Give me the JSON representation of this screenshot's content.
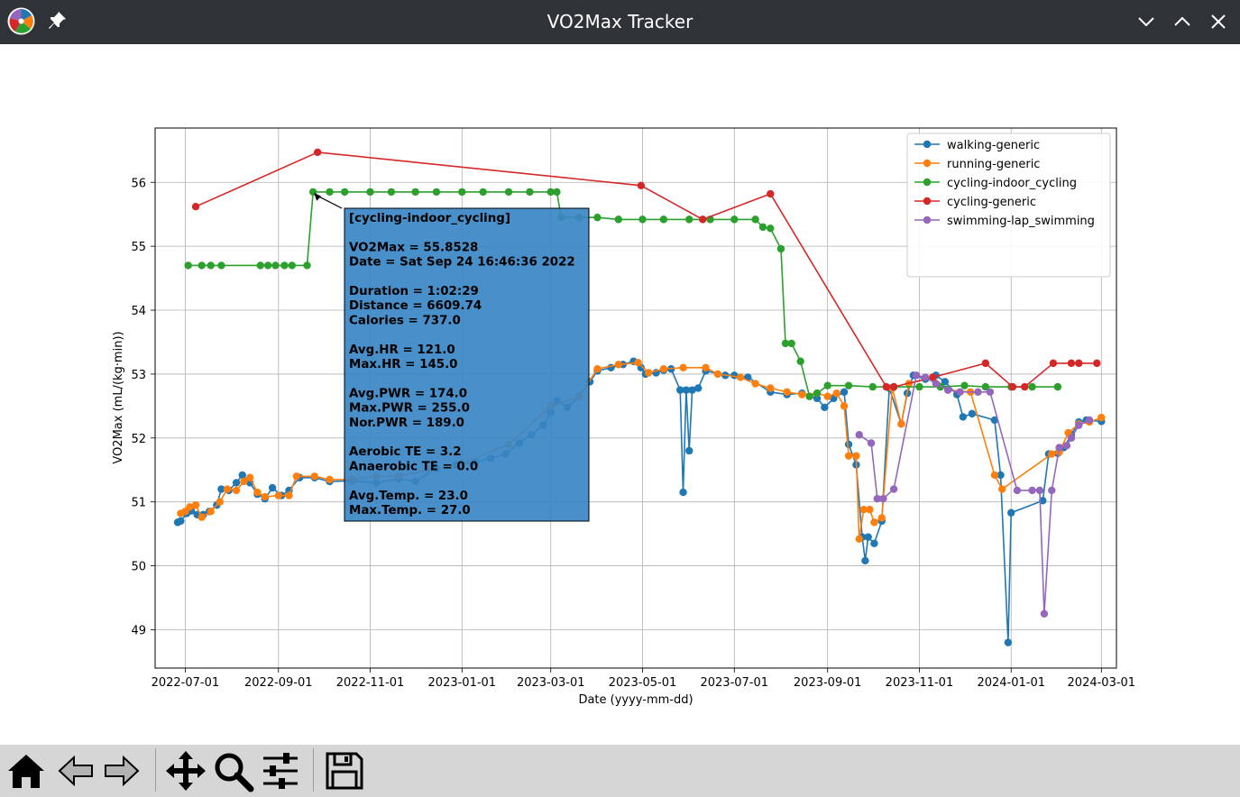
{
  "window": {
    "title": "VO2Max Tracker"
  },
  "icons": {
    "app": "app-logo-icon",
    "pin": "pin-icon",
    "minimize": "chevron-down-icon",
    "maximize": "chevron-up-icon",
    "close": "close-icon"
  },
  "toolbar": {
    "tools": [
      "home-icon",
      "back-arrow-icon",
      "forward-arrow-icon",
      "pan-icon",
      "zoom-icon",
      "configure-subplots-icon",
      "save-icon"
    ]
  },
  "chart_data": {
    "type": "line",
    "xlabel": "Date (yyyy-mm-dd)",
    "ylabel": "VO2Max (mL/(kg·min))",
    "xlim": [
      "2022-06-11",
      "2024-03-11"
    ],
    "ylim": [
      48.4,
      56.85
    ],
    "x_ticks": [
      "2022-07-01",
      "2022-09-01",
      "2022-11-01",
      "2023-01-01",
      "2023-03-01",
      "2023-05-01",
      "2023-07-01",
      "2023-09-01",
      "2023-11-01",
      "2024-01-01",
      "2024-03-01"
    ],
    "y_ticks": [
      49,
      50,
      51,
      52,
      53,
      54,
      55,
      56
    ],
    "grid": true,
    "legend_position": "top-right",
    "series": [
      {
        "name": "walking-generic",
        "color": "#1f77b4",
        "points": [
          [
            "2022-06-26",
            50.68
          ],
          [
            "2022-06-28",
            50.7
          ],
          [
            "2022-07-02",
            50.82
          ],
          [
            "2022-07-05",
            50.86
          ],
          [
            "2022-07-09",
            50.8
          ],
          [
            "2022-07-13",
            50.8
          ],
          [
            "2022-07-17",
            50.85
          ],
          [
            "2022-07-22",
            50.95
          ],
          [
            "2022-07-25",
            51.2
          ],
          [
            "2022-07-30",
            51.18
          ],
          [
            "2022-08-04",
            51.3
          ],
          [
            "2022-08-08",
            51.42
          ],
          [
            "2022-08-13",
            51.3
          ],
          [
            "2022-08-18",
            51.12
          ],
          [
            "2022-08-23",
            51.05
          ],
          [
            "2022-08-28",
            51.22
          ],
          [
            "2022-09-03",
            51.1
          ],
          [
            "2022-09-08",
            51.18
          ],
          [
            "2022-09-15",
            51.38
          ],
          [
            "2022-09-25",
            51.38
          ],
          [
            "2022-10-05",
            51.32
          ],
          [
            "2022-10-20",
            51.33
          ],
          [
            "2022-11-05",
            51.3
          ],
          [
            "2022-11-20",
            51.36
          ],
          [
            "2022-12-01",
            51.32
          ],
          [
            "2022-12-15",
            51.52
          ],
          [
            "2022-12-28",
            51.58
          ],
          [
            "2023-01-10",
            51.62
          ],
          [
            "2023-01-20",
            51.68
          ],
          [
            "2023-01-30",
            51.75
          ],
          [
            "2023-02-08",
            51.92
          ],
          [
            "2023-02-16",
            52.05
          ],
          [
            "2023-02-24",
            52.2
          ],
          [
            "2023-03-01",
            52.4
          ],
          [
            "2023-03-05",
            52.58
          ],
          [
            "2023-03-12",
            52.48
          ],
          [
            "2023-03-20",
            52.65
          ],
          [
            "2023-03-27",
            52.88
          ],
          [
            "2023-04-01",
            53.05
          ],
          [
            "2023-04-10",
            53.1
          ],
          [
            "2023-04-18",
            53.15
          ],
          [
            "2023-04-25",
            53.2
          ],
          [
            "2023-04-30",
            53.1
          ],
          [
            "2023-05-03",
            53.0
          ],
          [
            "2023-05-10",
            53.02
          ],
          [
            "2023-05-15",
            53.06
          ],
          [
            "2023-05-20",
            53.08
          ],
          [
            "2023-05-26",
            52.75
          ],
          [
            "2023-05-28",
            51.15
          ],
          [
            "2023-05-30",
            52.75
          ],
          [
            "2023-06-01",
            51.8
          ],
          [
            "2023-06-03",
            52.75
          ],
          [
            "2023-06-07",
            52.78
          ],
          [
            "2023-06-12",
            53.05
          ],
          [
            "2023-06-25",
            52.98
          ],
          [
            "2023-07-01",
            52.98
          ],
          [
            "2023-07-10",
            52.95
          ],
          [
            "2023-07-25",
            52.72
          ],
          [
            "2023-08-05",
            52.68
          ],
          [
            "2023-08-15",
            52.7
          ],
          [
            "2023-08-25",
            52.62
          ],
          [
            "2023-08-30",
            52.48
          ],
          [
            "2023-09-05",
            52.62
          ],
          [
            "2023-09-12",
            52.72
          ],
          [
            "2023-09-15",
            51.9
          ],
          [
            "2023-09-20",
            51.58
          ],
          [
            "2023-09-24",
            50.45
          ],
          [
            "2023-09-26",
            50.08
          ],
          [
            "2023-09-28",
            50.45
          ],
          [
            "2023-10-02",
            50.35
          ],
          [
            "2023-10-07",
            50.7
          ],
          [
            "2023-10-12",
            52.78
          ],
          [
            "2023-10-20",
            52.22
          ],
          [
            "2023-10-24",
            52.7
          ],
          [
            "2023-10-28",
            52.98
          ],
          [
            "2023-11-05",
            52.92
          ],
          [
            "2023-11-12",
            52.98
          ],
          [
            "2023-11-18",
            52.88
          ],
          [
            "2023-11-26",
            52.68
          ],
          [
            "2023-11-30",
            52.33
          ],
          [
            "2023-12-06",
            52.38
          ],
          [
            "2023-12-21",
            52.28
          ],
          [
            "2023-12-25",
            51.42
          ],
          [
            "2023-12-30",
            48.8
          ],
          [
            "2024-01-01",
            50.83
          ],
          [
            "2024-01-22",
            51.02
          ],
          [
            "2024-01-26",
            51.75
          ],
          [
            "2024-02-01",
            51.76
          ],
          [
            "2024-02-05",
            51.85
          ],
          [
            "2024-02-10",
            52.05
          ],
          [
            "2024-02-15",
            52.25
          ],
          [
            "2024-02-20",
            52.28
          ],
          [
            "2024-03-01",
            52.26
          ]
        ]
      },
      {
        "name": "running-generic",
        "color": "#ff7f0e",
        "points": [
          [
            "2022-06-28",
            50.82
          ],
          [
            "2022-07-01",
            50.85
          ],
          [
            "2022-07-04",
            50.92
          ],
          [
            "2022-07-08",
            50.95
          ],
          [
            "2022-07-12",
            50.76
          ],
          [
            "2022-07-18",
            50.85
          ],
          [
            "2022-07-24",
            51.0
          ],
          [
            "2022-07-29",
            51.2
          ],
          [
            "2022-08-04",
            51.18
          ],
          [
            "2022-08-09",
            51.32
          ],
          [
            "2022-08-13",
            51.38
          ],
          [
            "2022-08-18",
            51.15
          ],
          [
            "2022-08-23",
            51.08
          ],
          [
            "2022-09-01",
            51.1
          ],
          [
            "2022-09-08",
            51.1
          ],
          [
            "2022-09-13",
            51.4
          ],
          [
            "2022-09-25",
            51.4
          ],
          [
            "2022-10-05",
            51.35
          ],
          [
            "2022-10-20",
            51.35
          ],
          [
            "2022-11-05",
            51.4
          ],
          [
            "2022-11-20",
            51.4
          ],
          [
            "2022-12-10",
            51.5
          ],
          [
            "2023-01-01",
            51.6
          ],
          [
            "2023-02-01",
            51.9
          ],
          [
            "2023-03-01",
            52.5
          ],
          [
            "2023-03-20",
            52.65
          ],
          [
            "2023-04-01",
            53.08
          ],
          [
            "2023-04-15",
            53.15
          ],
          [
            "2023-04-28",
            53.18
          ],
          [
            "2023-05-05",
            53.02
          ],
          [
            "2023-05-15",
            53.08
          ],
          [
            "2023-05-28",
            53.1
          ],
          [
            "2023-06-12",
            53.1
          ],
          [
            "2023-06-20",
            53.0
          ],
          [
            "2023-07-05",
            52.95
          ],
          [
            "2023-07-15",
            52.85
          ],
          [
            "2023-07-25",
            52.78
          ],
          [
            "2023-08-05",
            52.72
          ],
          [
            "2023-08-15",
            52.68
          ],
          [
            "2023-08-25",
            52.7
          ],
          [
            "2023-09-01",
            52.65
          ],
          [
            "2023-09-07",
            52.7
          ],
          [
            "2023-09-12",
            52.5
          ],
          [
            "2023-09-15",
            51.72
          ],
          [
            "2023-09-20",
            51.72
          ],
          [
            "2023-09-22",
            50.42
          ],
          [
            "2023-09-25",
            50.88
          ],
          [
            "2023-09-29",
            50.88
          ],
          [
            "2023-10-02",
            50.68
          ],
          [
            "2023-10-07",
            50.75
          ],
          [
            "2023-10-14",
            52.78
          ],
          [
            "2023-10-20",
            52.22
          ],
          [
            "2023-10-25",
            52.85
          ],
          [
            "2023-11-10",
            52.95
          ],
          [
            "2023-11-20",
            52.75
          ],
          [
            "2023-12-05",
            52.72
          ],
          [
            "2023-12-21",
            51.42
          ],
          [
            "2023-12-26",
            51.2
          ],
          [
            "2024-01-28",
            51.75
          ],
          [
            "2024-02-02",
            51.78
          ],
          [
            "2024-02-08",
            52.08
          ],
          [
            "2024-02-15",
            52.22
          ],
          [
            "2024-02-22",
            52.25
          ],
          [
            "2024-03-01",
            52.32
          ]
        ]
      },
      {
        "name": "cycling-indoor_cycling",
        "color": "#2ca02c",
        "points": [
          [
            "2022-07-03",
            54.7
          ],
          [
            "2022-07-12",
            54.7
          ],
          [
            "2022-07-18",
            54.7
          ],
          [
            "2022-07-25",
            54.7
          ],
          [
            "2022-08-20",
            54.7
          ],
          [
            "2022-08-25",
            54.7
          ],
          [
            "2022-08-30",
            54.7
          ],
          [
            "2022-09-05",
            54.7
          ],
          [
            "2022-09-10",
            54.7
          ],
          [
            "2022-09-20",
            54.7
          ],
          [
            "2022-09-24",
            55.85
          ],
          [
            "2022-10-05",
            55.85
          ],
          [
            "2022-10-15",
            55.85
          ],
          [
            "2022-11-01",
            55.85
          ],
          [
            "2022-11-15",
            55.85
          ],
          [
            "2022-12-01",
            55.85
          ],
          [
            "2022-12-15",
            55.85
          ],
          [
            "2023-01-01",
            55.85
          ],
          [
            "2023-01-15",
            55.85
          ],
          [
            "2023-02-01",
            55.85
          ],
          [
            "2023-02-15",
            55.85
          ],
          [
            "2023-03-01",
            55.85
          ],
          [
            "2023-03-05",
            55.85
          ],
          [
            "2023-03-08",
            55.45
          ],
          [
            "2023-03-20",
            55.45
          ],
          [
            "2023-04-01",
            55.45
          ],
          [
            "2023-04-15",
            55.42
          ],
          [
            "2023-05-01",
            55.42
          ],
          [
            "2023-05-15",
            55.42
          ],
          [
            "2023-06-01",
            55.42
          ],
          [
            "2023-06-15",
            55.42
          ],
          [
            "2023-07-01",
            55.42
          ],
          [
            "2023-07-15",
            55.42
          ],
          [
            "2023-07-20",
            55.3
          ],
          [
            "2023-07-25",
            55.28
          ],
          [
            "2023-08-01",
            54.96
          ],
          [
            "2023-08-04",
            53.48
          ],
          [
            "2023-08-08",
            53.48
          ],
          [
            "2023-08-14",
            53.2
          ],
          [
            "2023-08-20",
            52.65
          ],
          [
            "2023-08-25",
            52.7
          ],
          [
            "2023-09-01",
            52.82
          ],
          [
            "2023-09-15",
            52.82
          ],
          [
            "2023-10-01",
            52.8
          ],
          [
            "2023-10-15",
            52.8
          ],
          [
            "2023-11-01",
            52.8
          ],
          [
            "2023-11-15",
            52.8
          ],
          [
            "2023-12-01",
            52.82
          ],
          [
            "2023-12-15",
            52.8
          ],
          [
            "2024-01-01",
            52.8
          ],
          [
            "2024-01-15",
            52.8
          ],
          [
            "2024-02-01",
            52.8
          ]
        ]
      },
      {
        "name": "cycling-generic",
        "color": "#d62728",
        "points": [
          [
            "2022-07-08",
            55.62
          ],
          [
            "2022-09-27",
            56.47
          ],
          [
            "2023-04-30",
            55.95
          ],
          [
            "2023-06-10",
            55.42
          ],
          [
            "2023-07-25",
            55.82
          ],
          [
            "2023-10-10",
            52.8
          ],
          [
            "2023-10-15",
            52.8
          ],
          [
            "2023-11-10",
            52.95
          ],
          [
            "2023-12-15",
            53.17
          ],
          [
            "2024-01-02",
            52.8
          ],
          [
            "2024-01-10",
            52.8
          ],
          [
            "2024-01-29",
            53.17
          ],
          [
            "2024-02-10",
            53.17
          ],
          [
            "2024-02-15",
            53.17
          ],
          [
            "2024-02-27",
            53.17
          ]
        ]
      },
      {
        "name": "swimming-lap_swimming",
        "color": "#9467bd",
        "points": [
          [
            "2023-09-22",
            52.05
          ],
          [
            "2023-09-30",
            51.92
          ],
          [
            "2023-10-04",
            51.05
          ],
          [
            "2023-10-08",
            51.05
          ],
          [
            "2023-10-15",
            51.2
          ],
          [
            "2023-10-30",
            52.98
          ],
          [
            "2023-11-05",
            52.95
          ],
          [
            "2023-11-12",
            52.85
          ],
          [
            "2023-11-20",
            52.75
          ],
          [
            "2023-11-28",
            52.72
          ],
          [
            "2023-12-10",
            52.72
          ],
          [
            "2023-12-18",
            52.72
          ],
          [
            "2024-01-05",
            51.18
          ],
          [
            "2024-01-15",
            51.18
          ],
          [
            "2024-01-20",
            51.18
          ],
          [
            "2024-01-23",
            49.25
          ],
          [
            "2024-01-28",
            51.18
          ],
          [
            "2024-02-02",
            51.85
          ],
          [
            "2024-02-07",
            51.88
          ],
          [
            "2024-02-10",
            52.0
          ],
          [
            "2024-02-15",
            52.2
          ],
          [
            "2024-02-22",
            52.28
          ]
        ]
      }
    ],
    "annotation": {
      "arrow_to": [
        "2022-09-24",
        55.8528
      ],
      "lines": [
        "[cycling-indoor_cycling]",
        "",
        "VO2Max = 55.8528",
        "Date = Sat Sep 24 16:46:36 2022",
        "",
        "Duration = 1:02:29",
        "Distance = 6609.74",
        "Calories = 737.0",
        "",
        "Avg.HR = 121.0",
        "Max.HR = 145.0",
        "",
        "Avg.PWR = 174.0",
        "Max.PWR = 255.0",
        "Nor.PWR = 189.0",
        "",
        "Aerobic TE = 3.2",
        "Anaerobic TE = 0.0",
        "",
        "Avg.Temp. = 23.0",
        "Max.Temp. = 27.0"
      ]
    }
  }
}
